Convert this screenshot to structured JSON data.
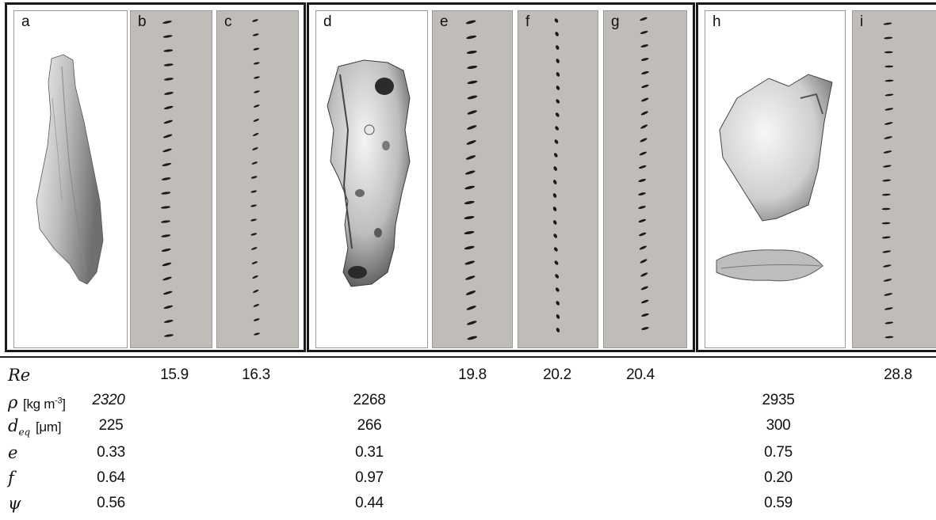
{
  "panels": {
    "a": "a",
    "b": "b",
    "c": "c",
    "d": "d",
    "e": "e",
    "f": "f",
    "g": "g",
    "h": "h",
    "i": "i"
  },
  "table": {
    "re": {
      "symbol": "Re",
      "b": "15.9",
      "c": "16.3",
      "e": "19.8",
      "f": "20.2",
      "g": "20.4",
      "i": "28.8"
    },
    "rho": {
      "symbol": "ρ",
      "unit": "[kg m",
      "unit_sup": "-3",
      "unit_end": "]",
      "g1": "2320",
      "g2": "2268",
      "g3": "2935"
    },
    "deq": {
      "symbol": "d",
      "sub": "eq",
      "unit": "[μm]",
      "g1": "225",
      "g2": "266",
      "g3": "300"
    },
    "e": {
      "symbol": "e",
      "g1": "0.33",
      "g2": "0.31",
      "g3": "0.75"
    },
    "f": {
      "symbol": "f",
      "g1": "0.64",
      "g2": "0.97",
      "g3": "0.20"
    },
    "psi": {
      "symbol": "ψ",
      "g1": "0.56",
      "g2": "0.44",
      "g3": "0.59"
    }
  },
  "colors": {
    "panel_grey": "#c0bdb8",
    "frame": "#1a1a1a",
    "trail": "#1b1b1b",
    "particle_light": "#d9d9d9",
    "particle_dark": "#6a6a6a"
  }
}
